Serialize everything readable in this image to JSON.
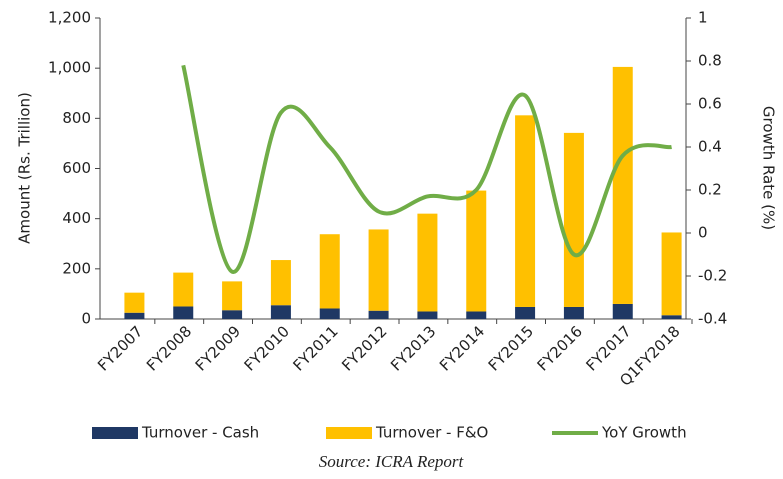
{
  "chart_data": {
    "type": "bar",
    "ylabel": "Amount (Rs. Trillion)",
    "y2label": "Growth Rate (%)",
    "categories": [
      "FY2007",
      "FY2008",
      "FY2009",
      "FY2010",
      "FY2011",
      "FY2012",
      "FY2013",
      "FY2014",
      "FY2015",
      "FY2016",
      "FY2017",
      "Q1FY2018"
    ],
    "series": [
      {
        "name": "Turnover - Cash",
        "color": "#1f3864",
        "type": "bar",
        "values": [
          25,
          50,
          35,
          55,
          42,
          33,
          30,
          30,
          48,
          48,
          60,
          15
        ]
      },
      {
        "name": "Turnover - F&O",
        "color": "#ffc000",
        "type": "bar",
        "values": [
          80,
          135,
          115,
          180,
          296,
          324,
          390,
          482,
          764,
          694,
          945,
          330
        ]
      },
      {
        "name": "YoY Growth",
        "color": "#70ad47",
        "type": "line",
        "axis": "y2",
        "values": [
          null,
          0.78,
          -0.18,
          0.56,
          0.4,
          0.1,
          0.17,
          0.2,
          0.64,
          -0.1,
          0.36,
          0.4
        ]
      }
    ],
    "stacked": true,
    "ylim": [
      0,
      1200
    ],
    "yticks": [
      0,
      200,
      400,
      600,
      800,
      {
        "value": 1000,
        "label": "1,000"
      },
      {
        "value": 1200,
        "label": "1,200"
      }
    ],
    "y2lim": [
      -0.4,
      1
    ],
    "y2ticks": [
      -0.4,
      -0.2,
      0,
      0.2,
      0.4,
      0.6,
      0.8,
      1
    ],
    "legend": "bottom",
    "source": "Source: ICRA Report"
  }
}
